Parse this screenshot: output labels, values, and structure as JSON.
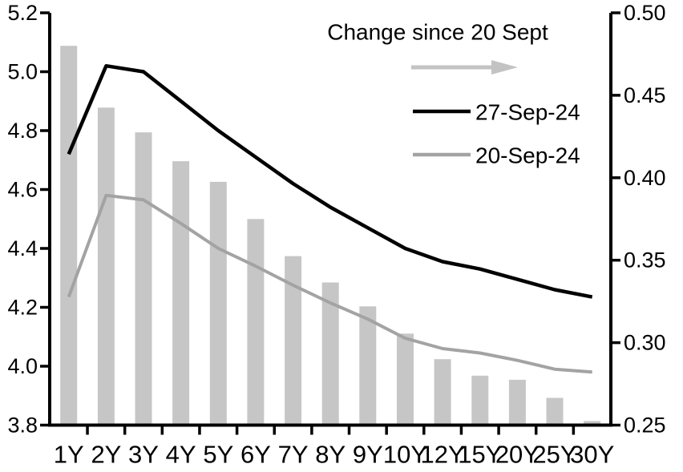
{
  "chart_data": {
    "type": "bar+line dual-axis combo",
    "title": "",
    "grid": "off",
    "legend_position": "top-right-inside",
    "categories": [
      "1Y",
      "2Y",
      "3Y",
      "4Y",
      "5Y",
      "6Y",
      "7Y",
      "8Y",
      "9Y",
      "10Y",
      "12Y",
      "15Y",
      "20Y",
      "25Y",
      "30Y"
    ],
    "left_axis": {
      "min": 3.8,
      "max": 5.2,
      "tick_labels": [
        "5.2",
        "5.0",
        "4.8",
        "4.6",
        "4.4",
        "4.2",
        "4.0",
        "3.8"
      ]
    },
    "right_axis": {
      "min": 0.25,
      "max": 0.5,
      "tick_labels": [
        "0.50",
        "0.45",
        "0.40",
        "0.35",
        "0.30",
        "0.25"
      ]
    },
    "bar_series": {
      "name": "Change since 20 Sept",
      "axis": "right",
      "color": "#c6c6c6",
      "values": [
        0.48,
        0.4425,
        0.4275,
        0.41,
        0.3975,
        0.375,
        0.3525,
        0.3365,
        0.322,
        0.3055,
        0.29,
        0.28,
        0.2775,
        0.2665,
        0.2525
      ]
    },
    "line_series": [
      {
        "name": "27-Sep-24",
        "axis": "left",
        "color": "#000000",
        "values": [
          4.72,
          5.02,
          5.0,
          4.9,
          4.8,
          4.71,
          4.62,
          4.54,
          4.47,
          4.4,
          4.355,
          4.33,
          4.295,
          4.26,
          4.235
        ]
      },
      {
        "name": "20-Sep-24",
        "axis": "left",
        "color": "#a3a3a3",
        "values": [
          4.235,
          4.58,
          4.565,
          4.485,
          4.4,
          4.34,
          4.275,
          4.215,
          4.16,
          4.095,
          4.06,
          4.045,
          4.02,
          3.99,
          3.98
        ]
      }
    ],
    "legend": {
      "title": "Change since 20 Sept",
      "arrow_color": "#c3c3c3",
      "entries": [
        {
          "label": "27-Sep-24",
          "color": "#000000"
        },
        {
          "label": "20-Sep-24",
          "color": "#a3a3a3"
        }
      ]
    },
    "colors": {
      "axis": "#000000",
      "background": "#ffffff"
    }
  }
}
